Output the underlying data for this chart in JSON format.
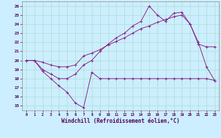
{
  "title": "",
  "xlabel": "Windchill (Refroidissement éolien,°C)",
  "bg_color": "#cceeff",
  "grid_color": "#aaddcc",
  "line_color": "#882288",
  "xlim": [
    -0.5,
    23.5
  ],
  "ylim": [
    14.5,
    26.5
  ],
  "xticks": [
    0,
    1,
    2,
    3,
    4,
    5,
    6,
    7,
    8,
    9,
    10,
    11,
    12,
    13,
    14,
    15,
    16,
    17,
    18,
    19,
    20,
    21,
    22,
    23
  ],
  "yticks": [
    15,
    16,
    17,
    18,
    19,
    20,
    21,
    22,
    23,
    24,
    25,
    26
  ],
  "line1_x": [
    0,
    1,
    2,
    3,
    4,
    5,
    6,
    7,
    8,
    9,
    10,
    11,
    12,
    13,
    14,
    15,
    16,
    17,
    18,
    19,
    20,
    21,
    22,
    23
  ],
  "line1_y": [
    20.0,
    20.0,
    18.8,
    18.0,
    17.2,
    16.5,
    15.3,
    14.8,
    18.7,
    18.0,
    18.0,
    18.0,
    18.0,
    18.0,
    18.0,
    18.0,
    18.0,
    18.0,
    18.0,
    18.0,
    18.0,
    18.0,
    18.0,
    17.8
  ],
  "line2_x": [
    0,
    1,
    2,
    3,
    4,
    5,
    6,
    7,
    8,
    9,
    10,
    11,
    12,
    13,
    14,
    15,
    16,
    17,
    18,
    19,
    20,
    21,
    22,
    23
  ],
  "line2_y": [
    20.0,
    20.0,
    19.8,
    19.5,
    19.3,
    19.3,
    19.5,
    20.5,
    20.8,
    21.2,
    21.7,
    22.1,
    22.5,
    23.0,
    23.5,
    23.8,
    24.2,
    24.5,
    24.8,
    25.0,
    24.0,
    21.8,
    21.5,
    21.5
  ],
  "line3_x": [
    0,
    1,
    2,
    3,
    4,
    5,
    6,
    7,
    8,
    9,
    10,
    11,
    12,
    13,
    14,
    15,
    16,
    17,
    18,
    19,
    20,
    21,
    22,
    23
  ],
  "line3_y": [
    20.0,
    20.0,
    19.0,
    18.5,
    18.0,
    18.0,
    18.5,
    19.5,
    20.0,
    21.0,
    21.8,
    22.5,
    23.0,
    23.8,
    24.3,
    26.0,
    25.0,
    24.3,
    25.2,
    25.3,
    24.0,
    22.0,
    19.3,
    17.8
  ]
}
